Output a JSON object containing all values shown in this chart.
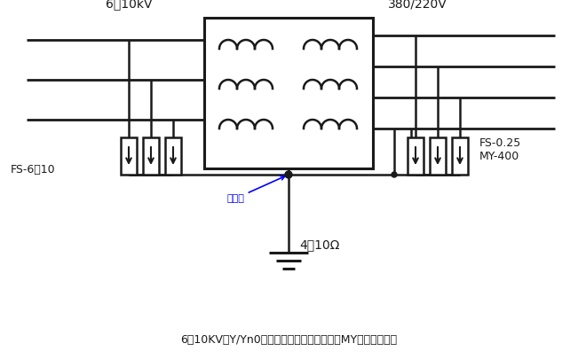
{
  "title": "6～10KV、Y/Yn0变压器的反变换防雷接线（MY－压敏电阵）",
  "label_hv": "6～10kV",
  "label_lv": "380/220V",
  "label_fs_left": "FS-6～10",
  "label_fs_right_1": "FS-0.25",
  "label_fs_right_2": "MY-400",
  "label_ground": "4～10Ω",
  "label_neutral": "中性点",
  "bg_color": "#ffffff",
  "line_color": "#1a1a1a"
}
